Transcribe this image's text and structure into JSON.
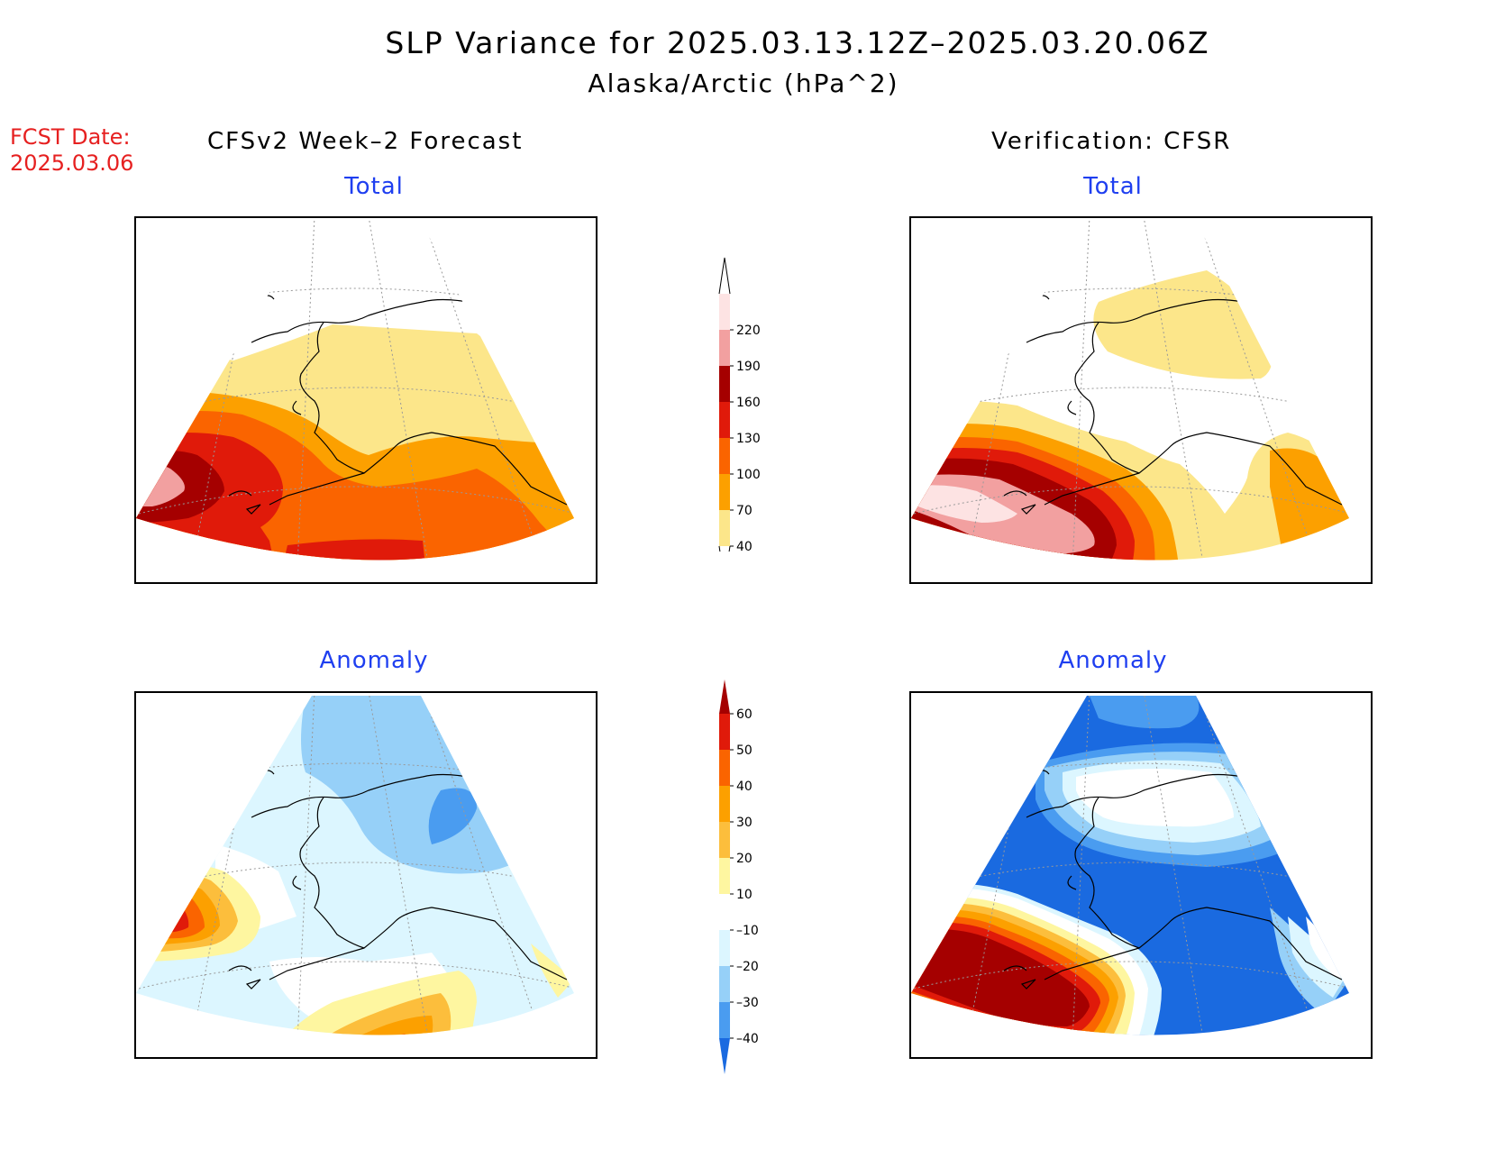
{
  "header": {
    "title": "SLP Variance for 2025.03.13.12Z–2025.03.20.06Z",
    "subtitle": "Alaska/Arctic (hPa^2)",
    "fcst_date_label": "FCST Date:",
    "fcst_date_value": "2025.03.06",
    "left_column": "CFSv2 Week–2 Forecast",
    "right_column": "Verification: CFSR"
  },
  "panels": {
    "forecast_total": "Total",
    "verification_total": "Total",
    "forecast_anomaly": "Anomaly",
    "verification_anomaly": "Anomaly"
  },
  "colorbars": {
    "total": {
      "labels": [
        "220",
        "190",
        "160",
        "130",
        "100",
        "70",
        "40"
      ],
      "colors": [
        "#fde3e3",
        "#f2a0a0",
        "#a50000",
        "#e01a0a",
        "#fa6400",
        "#fca000",
        "#fce68a"
      ]
    },
    "anomaly": {
      "labels": [
        "60",
        "50",
        "40",
        "30",
        "20",
        "10",
        "–10",
        "–20",
        "–30",
        "–40"
      ],
      "colors": [
        "#a50000",
        "#e01a0a",
        "#fa6400",
        "#fca000",
        "#fcbe3c",
        "#fef6a0",
        "#ffffff",
        "#dcf6ff",
        "#96d0f8",
        "#4a9cf0",
        "#1a6ae0"
      ]
    }
  },
  "colors": {
    "title_red": "#e62020",
    "panel_title_blue": "#1f3ff0"
  }
}
